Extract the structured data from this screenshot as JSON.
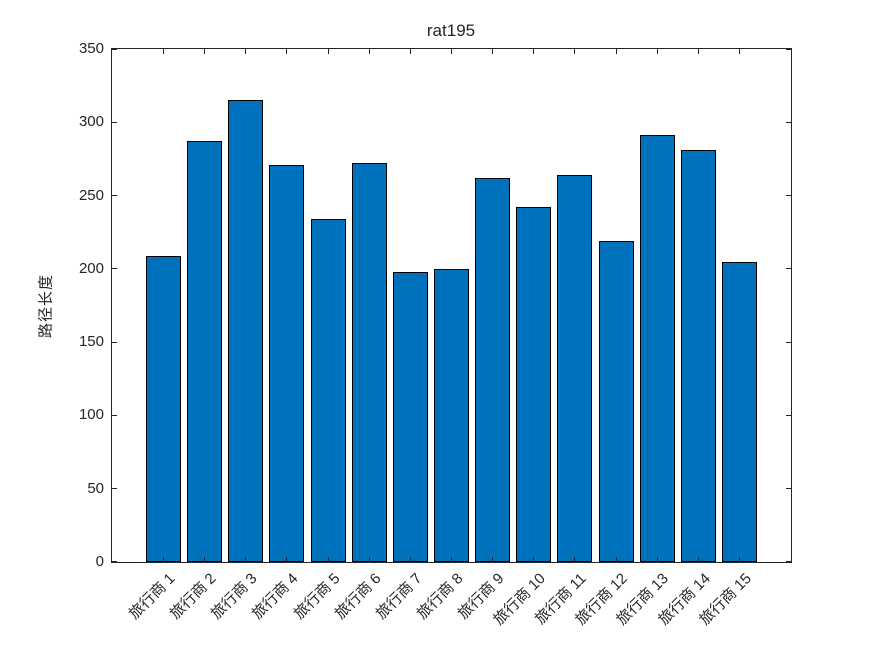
{
  "figure": {
    "background": "#ffffff"
  },
  "chart_data": {
    "type": "bar",
    "title": "rat195",
    "xlabel": "",
    "ylabel": "路径长度",
    "categories": [
      "旅行商 1",
      "旅行商 2",
      "旅行商 3",
      "旅行商 4",
      "旅行商 5",
      "旅行商 6",
      "旅行商 7",
      "旅行商 8",
      "旅行商 9",
      "旅行商 10",
      "旅行商 11",
      "旅行商 12",
      "旅行商 13",
      "旅行商 14",
      "旅行商 15"
    ],
    "values": [
      209,
      287,
      315,
      271,
      234,
      272,
      198,
      200,
      262,
      242,
      264,
      219,
      291,
      281,
      205
    ],
    "ylim": [
      0,
      350
    ],
    "yticks": [
      0,
      50,
      100,
      150,
      200,
      250,
      300,
      350
    ],
    "grid": false,
    "legend_position": "none",
    "x_tick_label_rotation_deg": 45,
    "bar_color": "#0072BD",
    "bar_edge_color": "#000000",
    "axis_color": "#262626",
    "text_color": "#262626"
  }
}
